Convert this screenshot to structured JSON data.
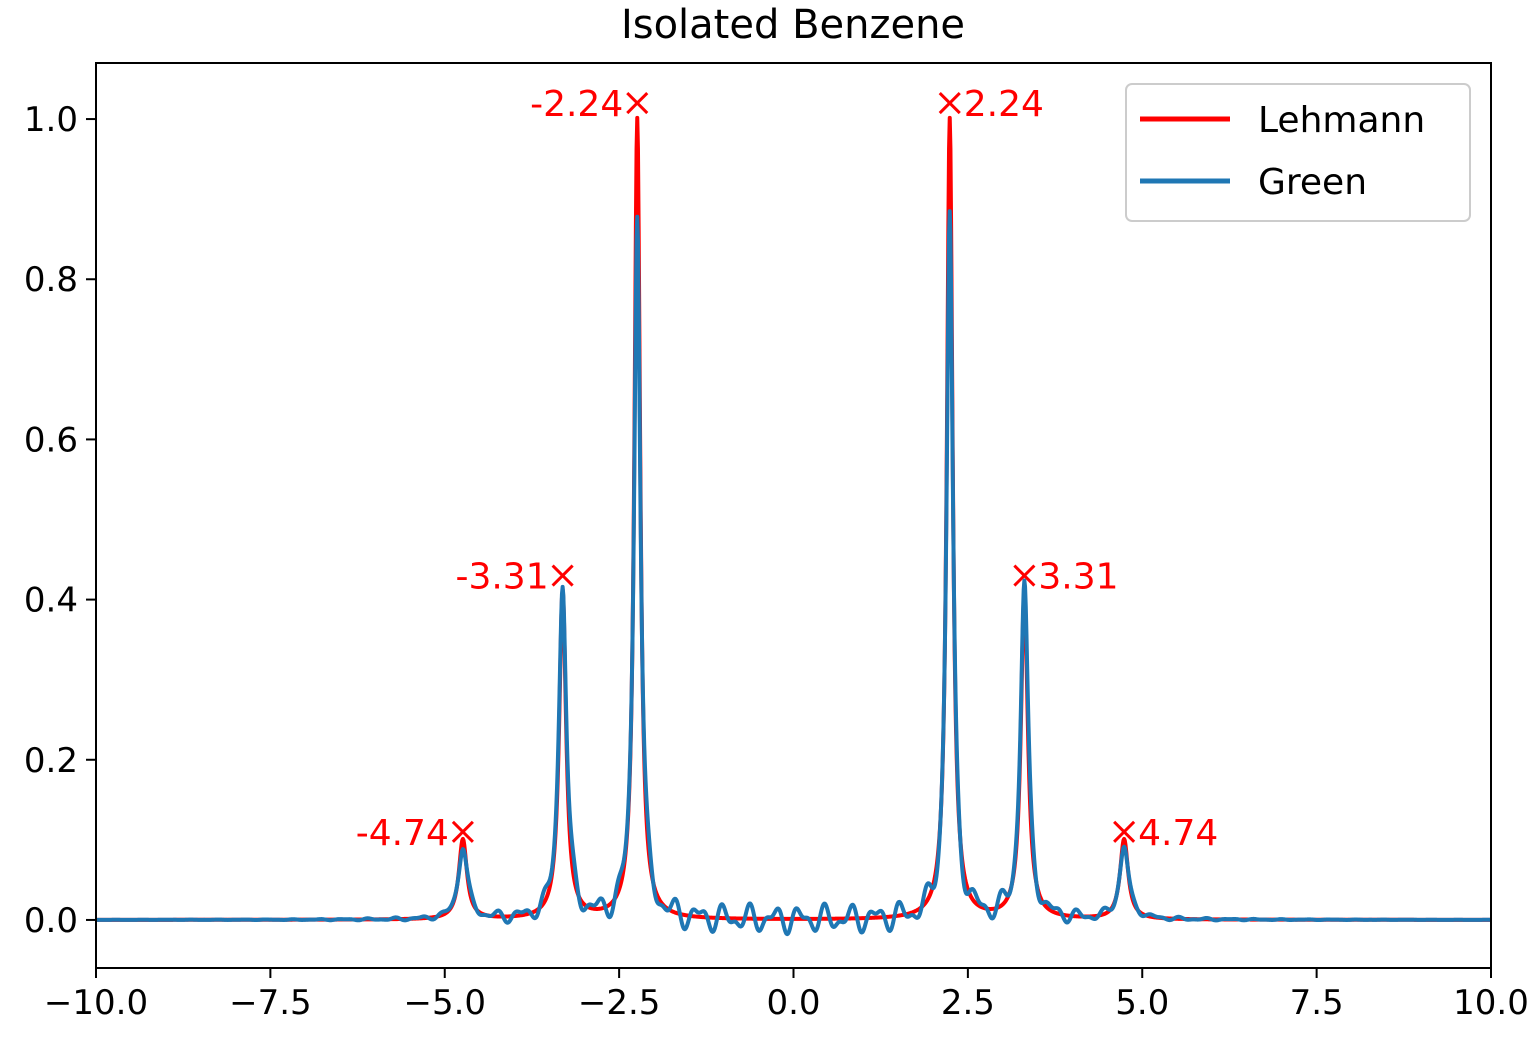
{
  "chart_data": {
    "type": "line",
    "title": "Isolated Benzene",
    "xlabel": "",
    "ylabel": "",
    "xlim": [
      -10,
      10
    ],
    "ylim": [
      -0.06,
      1.07
    ],
    "xticks": [
      -10,
      -7.5,
      -5,
      -2.5,
      0,
      2.5,
      5,
      7.5,
      10
    ],
    "xtick_labels": [
      "−10.0",
      "−7.5",
      "−5.0",
      "−2.5",
      "0.0",
      "2.5",
      "5.0",
      "7.5",
      "10.0"
    ],
    "yticks": [
      0,
      0.2,
      0.4,
      0.6,
      0.8,
      1.0
    ],
    "ytick_labels": [
      "0.0",
      "0.2",
      "0.4",
      "0.6",
      "0.8",
      "1.0"
    ],
    "grid": false,
    "legend": {
      "placement": "top-right",
      "entries": [
        "Lehmann",
        "Green"
      ]
    },
    "colors": {
      "lehmann": "#ff0000",
      "green": "#1f77b4",
      "markers": "#ff0000"
    },
    "series": [
      {
        "name": "Lehmann",
        "color": "#ff0000",
        "peaks": [
          {
            "center": -4.74,
            "height": 0.1,
            "width": 0.07
          },
          {
            "center": -3.31,
            "height": 0.41,
            "width": 0.06
          },
          {
            "center": -2.24,
            "height": 1.0,
            "width": 0.05
          },
          {
            "center": 2.24,
            "height": 1.0,
            "width": 0.05
          },
          {
            "center": 3.31,
            "height": 0.41,
            "width": 0.06
          },
          {
            "center": 4.74,
            "height": 0.1,
            "width": 0.07
          }
        ]
      },
      {
        "name": "Green",
        "color": "#1f77b4",
        "peaks": [
          {
            "center": -4.74,
            "height": 0.09,
            "width": 0.08
          },
          {
            "center": -3.31,
            "height": 0.42,
            "width": 0.065
          },
          {
            "center": -2.24,
            "height": 0.89,
            "width": 0.055
          },
          {
            "center": 2.24,
            "height": 0.88,
            "width": 0.055
          },
          {
            "center": 3.31,
            "height": 0.42,
            "width": 0.065
          },
          {
            "center": 4.74,
            "height": 0.09,
            "width": 0.08
          }
        ],
        "ripple": 0.012
      }
    ],
    "peak_markers": [
      {
        "x": -4.74,
        "y": 0.11,
        "label": "-4.74",
        "side": "left"
      },
      {
        "x": -3.31,
        "y": 0.43,
        "label": "-3.31",
        "side": "left"
      },
      {
        "x": -2.24,
        "y": 1.02,
        "label": "-2.24",
        "side": "left"
      },
      {
        "x": 2.24,
        "y": 1.02,
        "label": "2.24",
        "side": "right"
      },
      {
        "x": 3.31,
        "y": 0.43,
        "label": "3.31",
        "side": "right"
      },
      {
        "x": 4.74,
        "y": 0.11,
        "label": "4.74",
        "side": "right"
      }
    ]
  }
}
